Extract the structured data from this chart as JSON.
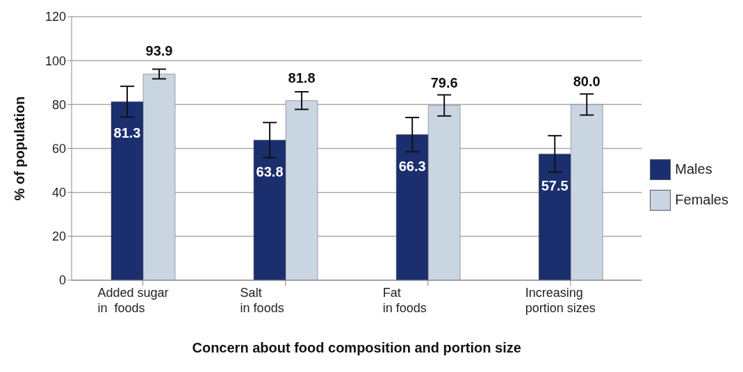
{
  "chart_data": {
    "type": "bar",
    "xlabel": "Concern about food composition and portion size",
    "ylabel": "% of population",
    "categories": [
      "Added sugar\nin  foods",
      "Salt\nin foods",
      "Fat\nin foods",
      "Increasing\nportion sizes"
    ],
    "series": [
      {
        "name": "Males",
        "color": "#1b2f6e",
        "values": [
          81.3,
          63.8,
          66.3,
          57.5
        ],
        "value_labels": [
          "81.3",
          "63.8",
          "66.3",
          "57.5"
        ],
        "errors": [
          7,
          8,
          7.8,
          8.3
        ]
      },
      {
        "name": "Females",
        "color": "#c9d5e1",
        "values": [
          93.9,
          81.8,
          79.6,
          80.0
        ],
        "value_labels": [
          "93.9",
          "81.8",
          "79.6",
          "80.0"
        ],
        "errors": [
          2.2,
          4,
          4.8,
          4.8
        ]
      }
    ],
    "ylim": [
      0,
      120
    ],
    "yticks": [
      0,
      20,
      40,
      60,
      80,
      100,
      120
    ],
    "grid": "y",
    "legend": "right"
  }
}
